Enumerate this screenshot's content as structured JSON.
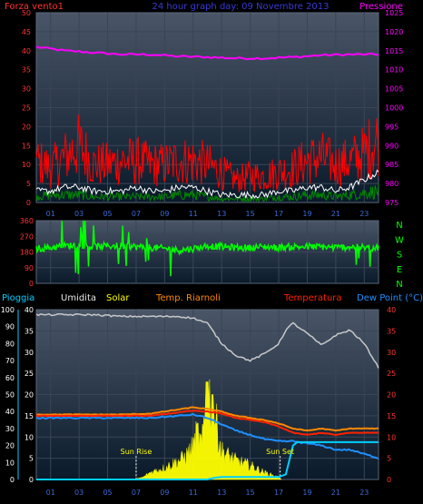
{
  "colors": {
    "background": "#000000",
    "plot_top": "#4a5668",
    "plot_bottom": "#0a1a2a",
    "grid": "#3a4556",
    "wind_speed": "#ff0000",
    "wind_avg": "#ffffff",
    "wind_other": "#008800",
    "pressure": "#ff00ff",
    "direction": "#00ff00",
    "rain": "#00d0ff",
    "humidity": "#c8c8c8",
    "solar": "#ffff00",
    "temp_riarnoli": "#ff8800",
    "temperature": "#ff2200",
    "dew_point": "#1e90ff",
    "axis_left_1": "#ff3333",
    "axis_right_1": "#ff00ff",
    "axis_left_3": "#00d0ff",
    "axis_right_3": "#ff3333"
  },
  "chart_data": [
    {
      "type": "line",
      "title": "24 hour graph day: 09 Novembre 2013",
      "left_label": "Forza vento1",
      "right_label": "Pressione",
      "ylim_left": [
        0,
        50
      ],
      "yticks_left": [
        "0",
        "5",
        "10",
        "15",
        "20",
        "25",
        "30",
        "35",
        "40",
        "45",
        "50"
      ],
      "ylim_right": [
        975,
        1025
      ],
      "yticks_right": [
        "975",
        "980",
        "985",
        "990",
        "995",
        "1000",
        "1005",
        "1010",
        "1015",
        "1020",
        "1025"
      ],
      "xlim": [
        0,
        24
      ],
      "xticks": [
        "01",
        "03",
        "05",
        "07",
        "09",
        "11",
        "13",
        "15",
        "17",
        "19",
        "21",
        "23"
      ],
      "series": [
        {
          "key": "pressure",
          "axis": "right",
          "x": [
            0,
            2,
            4,
            6,
            8,
            10,
            12,
            14,
            16,
            18,
            20,
            22,
            24
          ],
          "y": [
            1016,
            1015,
            1014.5,
            1014,
            1014,
            1013.5,
            1013.3,
            1013,
            1013,
            1013.3,
            1013.8,
            1014,
            1014
          ]
        },
        {
          "key": "wind_speed",
          "axis": "left",
          "x": [
            0,
            1,
            2,
            3,
            4,
            5,
            6,
            7,
            8,
            9,
            10,
            11,
            12,
            13,
            14,
            15,
            16,
            17,
            18,
            19,
            20,
            21,
            22,
            23,
            24
          ],
          "y": [
            11,
            9,
            12,
            15,
            10,
            10,
            11,
            11,
            10,
            10,
            11,
            11,
            10,
            8,
            6,
            7,
            7,
            8,
            9,
            11,
            12,
            10,
            11,
            13,
            17
          ]
        },
        {
          "key": "wind_avg",
          "axis": "left",
          "x": [
            0,
            1,
            2,
            3,
            4,
            5,
            6,
            7,
            8,
            9,
            10,
            11,
            12,
            13,
            14,
            15,
            16,
            17,
            18,
            19,
            20,
            21,
            22,
            23,
            24
          ],
          "y": [
            3,
            3,
            4,
            4,
            3,
            3,
            3,
            4,
            3,
            3,
            4,
            4,
            3,
            2,
            2,
            2,
            2,
            3,
            3,
            4,
            4,
            3,
            4,
            6,
            8
          ]
        },
        {
          "key": "wind_other",
          "axis": "left",
          "x": [
            0,
            1,
            2,
            3,
            4,
            5,
            6,
            7,
            8,
            9,
            10,
            11,
            12,
            13,
            14,
            15,
            16,
            17,
            18,
            19,
            20,
            21,
            22,
            23,
            24
          ],
          "y": [
            1.5,
            2,
            2,
            2,
            1.5,
            1.5,
            1.5,
            1.5,
            1.5,
            1.5,
            2,
            2,
            1.5,
            1,
            1,
            1,
            1,
            1.5,
            1.5,
            2,
            2,
            1.5,
            2,
            2.5,
            3
          ]
        }
      ]
    },
    {
      "type": "scatter",
      "left_ticks": [
        "0",
        "90",
        "180",
        "270",
        "360"
      ],
      "ylim": [
        0,
        360
      ],
      "xlim": [
        0,
        24
      ],
      "compass": [
        "N",
        "W",
        "S",
        "E",
        "N"
      ],
      "series": [
        {
          "key": "direction",
          "x": [
            0,
            1,
            2,
            3,
            4,
            5,
            6,
            7,
            8,
            9,
            10,
            11,
            12,
            13,
            14,
            15,
            16,
            17,
            18,
            19,
            20,
            21,
            22,
            23,
            24
          ],
          "y": [
            200,
            205,
            215,
            220,
            210,
            215,
            215,
            210,
            205,
            200,
            190,
            200,
            215,
            210,
            205,
            205,
            210,
            205,
            210,
            210,
            210,
            205,
            210,
            205,
            205
          ]
        }
      ]
    },
    {
      "type": "line",
      "labels": [
        "Pioggia",
        "Umidita",
        "Solar",
        "Temp. Riarnoli",
        "Temperatura",
        "Dew Point (°C)"
      ],
      "left_ticks": [
        "0",
        "10",
        "20",
        "30",
        "40",
        "50",
        "60",
        "70",
        "80",
        "90",
        "100"
      ],
      "ylim_left": [
        0,
        100
      ],
      "inner_ticks": [
        "0",
        "5",
        "10",
        "15",
        "20",
        "25",
        "30",
        "35",
        "40"
      ],
      "ylim_inner": [
        0,
        40
      ],
      "right_ticks": [
        "0",
        "5",
        "10",
        "15",
        "20",
        "25",
        "30",
        "35",
        "40"
      ],
      "ylim_right": [
        0,
        40
      ],
      "xlim": [
        0,
        24
      ],
      "xticks": [
        "01",
        "03",
        "05",
        "07",
        "09",
        "11",
        "13",
        "15",
        "17",
        "19",
        "21",
        "23"
      ],
      "annotations": [
        {
          "text": "Sun Rise",
          "x": 7.0
        },
        {
          "text": "Sun Set",
          "x": 17.1
        }
      ],
      "series": [
        {
          "key": "humidity",
          "axis": "left",
          "x": [
            0,
            2,
            4,
            6,
            8,
            10,
            11,
            12,
            12.5,
            13,
            14,
            15,
            16,
            17,
            17.5,
            18,
            19,
            20,
            21,
            22,
            23,
            24
          ],
          "y": [
            97,
            97,
            97,
            96,
            96,
            96,
            95,
            92,
            86,
            80,
            73,
            70,
            74,
            80,
            88,
            92,
            86,
            79,
            85,
            88,
            80,
            66
          ]
        },
        {
          "key": "temperature",
          "axis": "right",
          "x": [
            0,
            2,
            4,
            6,
            8,
            10,
            11,
            12,
            13,
            14,
            15,
            16,
            17,
            18,
            19,
            20,
            21,
            22,
            23,
            24
          ],
          "y": [
            15,
            15,
            15,
            15,
            15,
            15.8,
            16.2,
            16,
            15.5,
            14.5,
            14,
            13.5,
            12.5,
            11,
            10.5,
            11,
            10.5,
            11,
            11,
            11
          ]
        },
        {
          "key": "temp_riarnoli",
          "axis": "right",
          "x": [
            0,
            2,
            4,
            6,
            8,
            10,
            11,
            12,
            13,
            14,
            15,
            16,
            17,
            18,
            19,
            20,
            21,
            22,
            23,
            24
          ],
          "y": [
            15.3,
            15.3,
            15.3,
            15.3,
            15.5,
            16.5,
            17,
            16.6,
            16,
            15,
            14.5,
            14,
            13.2,
            12,
            11.5,
            12,
            11.5,
            12,
            12,
            12
          ]
        },
        {
          "key": "dew_point",
          "axis": "right",
          "x": [
            0,
            2,
            4,
            6,
            8,
            10,
            11,
            12,
            13,
            14,
            15,
            16,
            17,
            18,
            19,
            20,
            21,
            22,
            23,
            24
          ],
          "y": [
            14.5,
            14.5,
            14.5,
            14.5,
            14.5,
            15,
            15.3,
            14.5,
            13,
            11.5,
            10.5,
            9.5,
            9,
            9,
            8.5,
            8,
            7,
            7,
            6,
            5
          ]
        },
        {
          "key": "rain",
          "axis": "left",
          "x": [
            0,
            8,
            12,
            12.5,
            13,
            17,
            17.5,
            18,
            18.3,
            24
          ],
          "y": [
            0,
            0,
            0,
            1,
            1.5,
            1.5,
            3,
            20,
            22,
            22
          ]
        },
        {
          "key": "solar",
          "axis": "inner",
          "x": [
            6.8,
            7.5,
            8,
            9,
            10,
            10.5,
            11,
            11.3,
            11.6,
            12,
            12.5,
            13,
            14,
            15,
            16,
            17,
            17.2
          ],
          "y": [
            0,
            0.5,
            1.5,
            2.5,
            4,
            5,
            7,
            10,
            7,
            19,
            14,
            6,
            4,
            3,
            1.5,
            0.5,
            0
          ]
        }
      ]
    }
  ]
}
